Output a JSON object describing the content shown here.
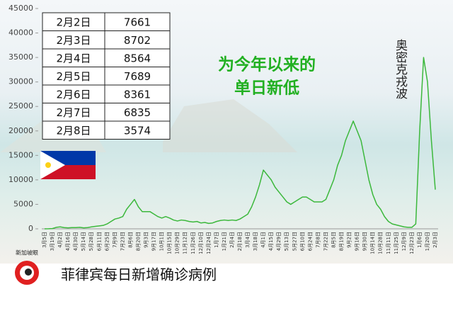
{
  "chart_data": {
    "type": "line",
    "categories": [
      "3月5日",
      null,
      "3月19日",
      null,
      "4月2日",
      null,
      "4月16日",
      null,
      "4月30日",
      null,
      "5月14日",
      null,
      "5月28日",
      null,
      "6月11日",
      null,
      "6月25日",
      null,
      "7月9日",
      null,
      "7月23日",
      null,
      "8月6日",
      null,
      "8月20日",
      null,
      "9月3日",
      null,
      "9月17日",
      null,
      "10月1日",
      null,
      "10月15日",
      null,
      "10月29日",
      null,
      "11月12日",
      null,
      "11月26日",
      null,
      "12月10日",
      null,
      "12月24日",
      null,
      "1月7日",
      null,
      "1月21日",
      null,
      "2月4日",
      null,
      "2月18日",
      null,
      "3月4日",
      null,
      "3月18日",
      null,
      "4月1日",
      null,
      "4月15日",
      null,
      "4月29日",
      null,
      "5月13日",
      null,
      "5月27日",
      null,
      "6月10日",
      null,
      "6月24日",
      null,
      "7月8日",
      null,
      "7月22日",
      null,
      "8月5日",
      null,
      "8月19日",
      null,
      "9月2日",
      null,
      "9月16日",
      null,
      "9月30日",
      null,
      "10月14日",
      null,
      "10月28日",
      null,
      "11月11日",
      null,
      "11月25日",
      null,
      "12月9日",
      null,
      "12月23日",
      null,
      "1月6日",
      null,
      "1月20日",
      null,
      "2月3日"
    ],
    "series": [
      {
        "color": "#3cb83c",
        "values": [
          0,
          10,
          50,
          300,
          400,
          250,
          200,
          250,
          250,
          300,
          200,
          250,
          400,
          500,
          600,
          700,
          1000,
          1500,
          2000,
          2200,
          2500,
          4000,
          5000,
          6000,
          4500,
          3500,
          3500,
          3500,
          3000,
          2500,
          2200,
          2500,
          2200,
          1800,
          1600,
          1800,
          1700,
          1500,
          1400,
          1500,
          1200,
          1300,
          1100,
          1200,
          1500,
          1700,
          1800,
          1700,
          1800,
          1700,
          2000,
          2500,
          3000,
          4500,
          6500,
          9000,
          12000,
          11000,
          10000,
          8500,
          7500,
          6500,
          5500,
          5000,
          5500,
          6000,
          6500,
          6500,
          6000,
          5500,
          5500,
          5500,
          6000,
          8000,
          10000,
          13000,
          15000,
          18000,
          20000,
          22000,
          20000,
          18000,
          14000,
          10000,
          7000,
          5000,
          4000,
          2500,
          1500,
          1000,
          800,
          600,
          400,
          300,
          300,
          1000,
          20000,
          35000,
          30000,
          18000,
          8000
        ]
      }
    ],
    "ylim": [
      0,
      45000
    ],
    "yticks": [
      0,
      5000,
      10000,
      15000,
      20000,
      25000,
      30000,
      35000,
      40000,
      45000
    ],
    "grid": false
  },
  "table": {
    "rows": [
      [
        "2月2日",
        7661
      ],
      [
        "2月3日",
        8702
      ],
      [
        "2月4日",
        8564
      ],
      [
        "2月5日",
        7689
      ],
      [
        "2月6日",
        8361
      ],
      [
        "2月7日",
        6835
      ],
      [
        "2月8日",
        3574
      ]
    ]
  },
  "annotations": {
    "lowest": [
      "为今年以来的",
      "单日新低"
    ],
    "omicron": "奥密克戎波"
  },
  "footer": {
    "logo": "新加坡眼",
    "title": "菲律宾每日新增确诊病例"
  }
}
